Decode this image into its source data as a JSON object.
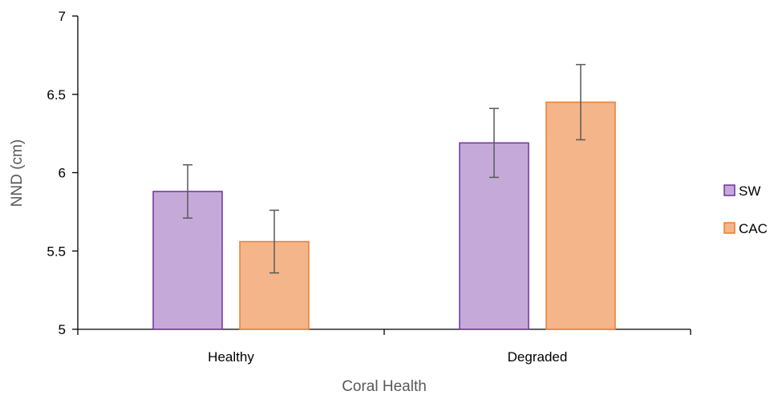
{
  "chart_data": {
    "type": "bar",
    "categories": [
      "Healthy",
      "Degraded"
    ],
    "series": [
      {
        "name": "SW",
        "values": [
          5.88,
          6.19
        ],
        "error": [
          0.17,
          0.22
        ],
        "fill": "#c5aad9",
        "stroke": "#7030a0"
      },
      {
        "name": "CAC",
        "values": [
          5.56,
          6.45
        ],
        "error": [
          0.2,
          0.24
        ],
        "fill": "#f4b58a",
        "stroke": "#ed7d31"
      }
    ],
    "xlabel": "Coral Health",
    "ylabel": "NND (cm)",
    "ylim": [
      5,
      7
    ],
    "yticks": [
      "5",
      "5.5",
      "6",
      "6.5",
      "7"
    ],
    "grid": false,
    "legend": "right",
    "axis_color": "#000000",
    "error_bar_color": "#595959"
  }
}
